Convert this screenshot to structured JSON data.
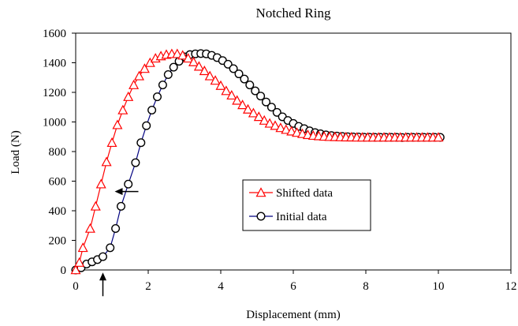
{
  "chart_data": {
    "type": "line",
    "title": "Notched Ring",
    "xlabel": "Displacement (mm)",
    "ylabel": "Load (N)",
    "xlim": [
      0,
      12
    ],
    "ylim": [
      0,
      1600
    ],
    "xticks": [
      0,
      2,
      4,
      6,
      8,
      10,
      12
    ],
    "yticks": [
      0,
      200,
      400,
      600,
      800,
      1000,
      1200,
      1400,
      1600
    ],
    "grid": false,
    "legend_position": "center-right",
    "series": [
      {
        "name": "Shifted data",
        "color": "#ff0000",
        "marker": "triangle",
        "x": [
          0.0,
          0.1,
          0.2,
          0.4,
          0.55,
          0.7,
          0.85,
          1.0,
          1.15,
          1.3,
          1.45,
          1.6,
          1.75,
          1.9,
          2.05,
          2.2,
          2.35,
          2.5,
          2.65,
          2.8,
          2.95,
          3.1,
          3.25,
          3.4,
          3.55,
          3.7,
          3.85,
          4.0,
          4.15,
          4.3,
          4.45,
          4.6,
          4.75,
          4.9,
          5.05,
          5.2,
          5.35,
          5.5,
          5.65,
          5.8,
          5.95,
          6.1,
          6.25,
          6.4,
          6.55,
          6.7,
          6.85,
          7.0,
          7.15,
          7.3,
          7.45,
          7.6,
          7.75,
          7.9,
          8.05,
          8.2,
          8.35,
          8.5,
          8.65,
          8.8,
          8.95,
          9.1,
          9.25,
          9.4,
          9.55,
          9.7,
          9.85,
          10.0
        ],
        "y": [
          0,
          50,
          150,
          280,
          430,
          580,
          730,
          860,
          980,
          1080,
          1170,
          1250,
          1310,
          1360,
          1400,
          1430,
          1445,
          1455,
          1460,
          1460,
          1450,
          1430,
          1405,
          1375,
          1345,
          1310,
          1280,
          1245,
          1210,
          1180,
          1145,
          1115,
          1085,
          1060,
          1035,
          1010,
          990,
          975,
          960,
          948,
          937,
          928,
          920,
          913,
          908,
          905,
          902,
          900,
          899,
          898,
          897,
          897,
          896,
          896,
          896,
          896,
          896,
          896,
          896,
          896,
          896,
          896,
          896,
          896,
          896,
          896,
          896,
          896
        ]
      },
      {
        "name": "Initial data",
        "color": "#000080",
        "marker": "circle",
        "x": [
          0.0,
          0.15,
          0.3,
          0.45,
          0.6,
          0.75,
          0.95,
          1.1,
          1.25,
          1.45,
          1.65,
          1.8,
          1.95,
          2.1,
          2.25,
          2.4,
          2.55,
          2.7,
          2.85,
          3.0,
          3.15,
          3.3,
          3.45,
          3.6,
          3.75,
          3.9,
          4.05,
          4.2,
          4.35,
          4.5,
          4.65,
          4.8,
          4.95,
          5.1,
          5.25,
          5.4,
          5.55,
          5.7,
          5.85,
          6.0,
          6.15,
          6.3,
          6.45,
          6.6,
          6.75,
          6.9,
          7.05,
          7.2,
          7.35,
          7.5,
          7.65,
          7.8,
          7.95,
          8.1,
          8.25,
          8.4,
          8.55,
          8.7,
          8.85,
          9.0,
          9.15,
          9.3,
          9.45,
          9.6,
          9.75,
          9.9,
          10.05
        ],
        "y": [
          0,
          15,
          40,
          55,
          70,
          90,
          150,
          280,
          430,
          580,
          725,
          860,
          975,
          1080,
          1170,
          1250,
          1320,
          1370,
          1410,
          1440,
          1455,
          1460,
          1462,
          1460,
          1450,
          1435,
          1415,
          1390,
          1360,
          1325,
          1290,
          1250,
          1210,
          1175,
          1135,
          1100,
          1065,
          1035,
          1010,
          990,
          970,
          955,
          940,
          928,
          920,
          913,
          908,
          905,
          902,
          900,
          899,
          898,
          897,
          897,
          896,
          896,
          896,
          896,
          896,
          895,
          896,
          896,
          896,
          896,
          896,
          896,
          896
        ]
      }
    ],
    "annotations": [
      {
        "type": "arrow",
        "direction": "left",
        "x": 1.25,
        "y": 530
      },
      {
        "type": "arrow",
        "direction": "up",
        "x": 0.75,
        "y": -60
      }
    ]
  }
}
